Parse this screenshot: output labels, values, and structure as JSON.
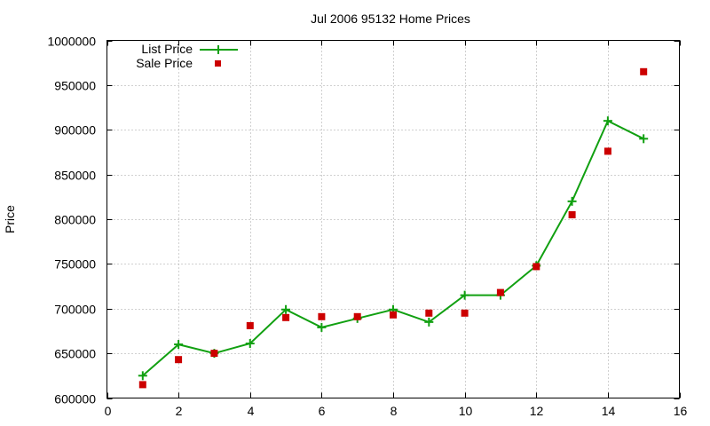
{
  "chart_data": {
    "type": "line",
    "title": "Jul 2006 95132 Home Prices",
    "xlabel": "",
    "ylabel": "Price",
    "xlim": [
      0,
      16
    ],
    "ylim": [
      600000,
      1000000
    ],
    "x_ticks": [
      0,
      2,
      4,
      6,
      8,
      10,
      12,
      14,
      16
    ],
    "y_ticks": [
      600000,
      650000,
      700000,
      750000,
      800000,
      850000,
      900000,
      950000,
      1000000
    ],
    "grid": true,
    "legend_position": "top-left",
    "series": [
      {
        "name": "List Price",
        "style": "line-plus",
        "color": "#11a011",
        "x": [
          1,
          2,
          3,
          4,
          5,
          6,
          7,
          8,
          9,
          10,
          11,
          12,
          13,
          14,
          15
        ],
        "y": [
          625000,
          660000,
          650000,
          661000,
          699000,
          679000,
          689000,
          699000,
          685000,
          715000,
          715000,
          748000,
          820000,
          910000,
          890000
        ]
      },
      {
        "name": "Sale Price",
        "style": "square-points",
        "color": "#cc0000",
        "x": [
          1,
          2,
          3,
          4,
          5,
          6,
          7,
          8,
          9,
          10,
          11,
          12,
          13,
          14,
          15
        ],
        "y": [
          615000,
          643000,
          650000,
          681000,
          690000,
          691000,
          691000,
          693000,
          695000,
          695000,
          718000,
          747000,
          805000,
          876000,
          965000
        ]
      }
    ]
  }
}
